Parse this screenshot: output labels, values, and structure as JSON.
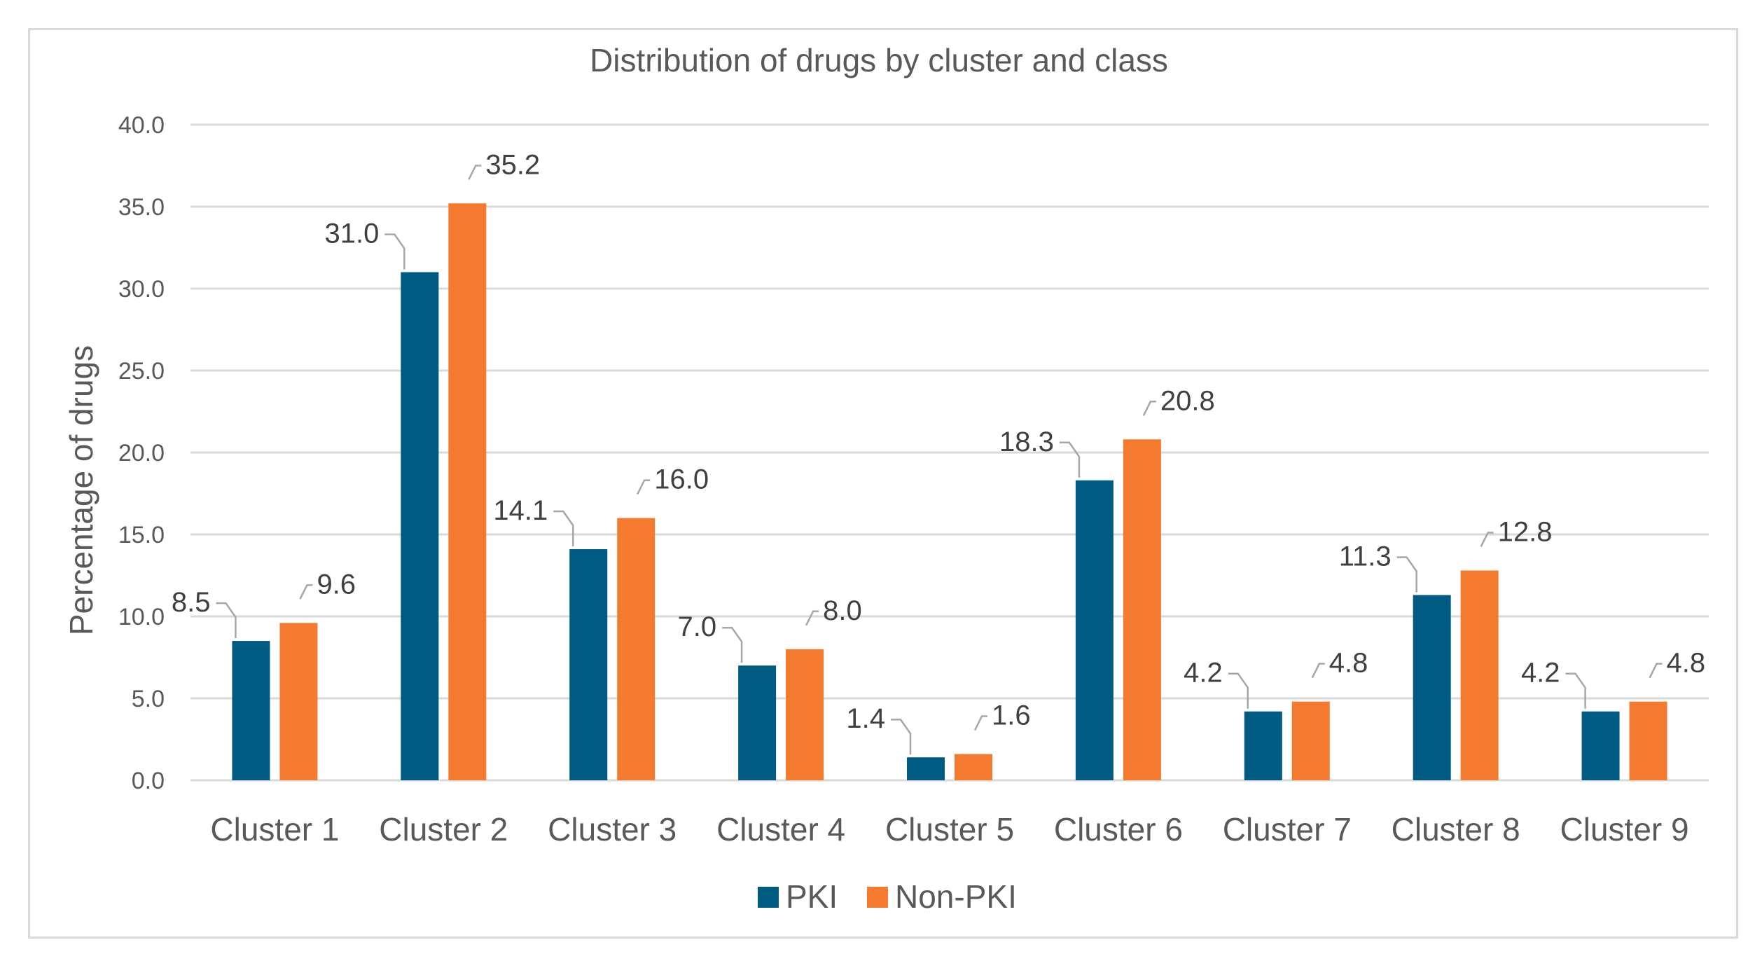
{
  "chart_data": {
    "type": "bar",
    "title": "Distribution of drugs by cluster and class",
    "xlabel": "",
    "ylabel": "Percentage of drugs",
    "ylim": [
      0,
      40
    ],
    "yticks": [
      "0.0",
      "5.0",
      "10.0",
      "15.0",
      "20.0",
      "25.0",
      "30.0",
      "35.0",
      "40.0"
    ],
    "grid": true,
    "legend_position": "bottom",
    "categories": [
      "Cluster 1",
      "Cluster 2",
      "Cluster 3",
      "Cluster 4",
      "Cluster 5",
      "Cluster 6",
      "Cluster 7",
      "Cluster 8",
      "Cluster 9"
    ],
    "series": [
      {
        "name": "PKI",
        "color": "#005b82",
        "values": [
          8.5,
          31.0,
          14.1,
          7.0,
          1.4,
          18.3,
          4.2,
          11.3,
          4.2
        ],
        "labels": [
          "8.5",
          "31.0",
          "14.1",
          "7.0",
          "1.4",
          "18.3",
          "4.2",
          "11.3",
          "4.2"
        ]
      },
      {
        "name": "Non-PKI",
        "color": "#f47a30",
        "values": [
          9.6,
          35.2,
          16.0,
          8.0,
          1.6,
          20.8,
          4.8,
          12.8,
          4.8
        ],
        "labels": [
          "9.6",
          "35.2",
          "16.0",
          "8.0",
          "1.6",
          "20.8",
          "4.8",
          "12.8",
          "4.8"
        ]
      }
    ]
  }
}
